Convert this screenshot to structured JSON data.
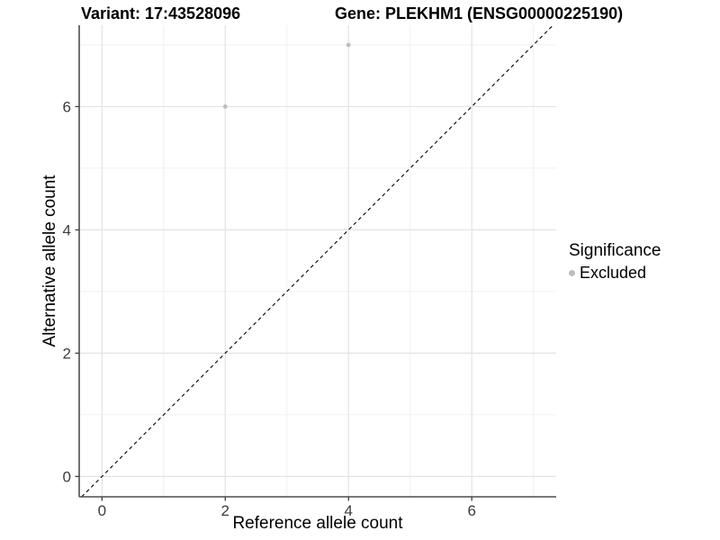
{
  "header": {
    "variant_title": "Variant: 17:43528096",
    "gene_title": "Gene: PLEKHM1 (ENSG00000225190)"
  },
  "chart_data": {
    "type": "scatter",
    "xlabel": "Reference allele count",
    "ylabel": "Alternative allele count",
    "xlim": [
      -0.37,
      7.37
    ],
    "ylim": [
      -0.33,
      7.32
    ],
    "x_ticks": {
      "major": [
        0,
        2,
        4,
        6
      ],
      "minor": [
        1,
        3,
        5,
        7
      ]
    },
    "y_ticks": {
      "major": [
        0,
        2,
        4,
        6
      ],
      "minor": [
        1,
        3,
        5,
        7
      ]
    },
    "grid": true,
    "identity_line": {
      "style": "dashed",
      "color": "#000000",
      "from": -0.33,
      "to": 7.32
    },
    "series": [
      {
        "name": "Excluded",
        "color": "#bdbdbd",
        "points": [
          [
            2,
            6
          ],
          [
            4,
            7
          ]
        ]
      }
    ],
    "legend": {
      "title": "Significance",
      "position": "right",
      "items": [
        {
          "label": "Excluded",
          "color": "#bdbdbd"
        }
      ]
    }
  }
}
